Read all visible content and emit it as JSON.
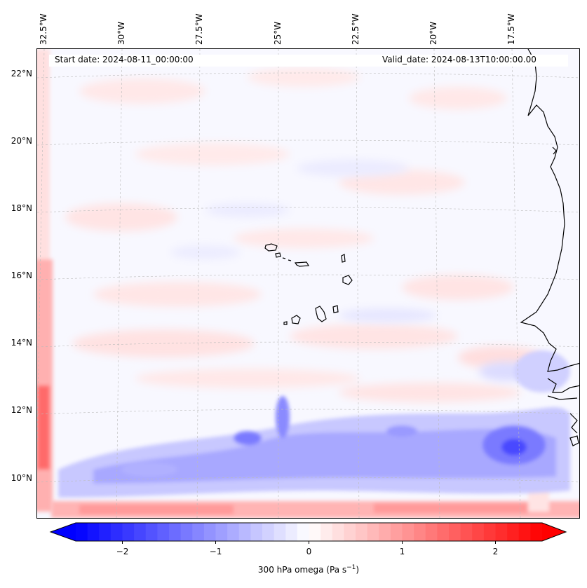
{
  "map": {
    "start_date": "Start date: 2024-08-11_00:00:00",
    "valid_date": "Valid_date: 2024-08-13T10:00:00.00",
    "lon_labels": [
      "32.5°W",
      "30°W",
      "27.5°W",
      "25°W",
      "22.5°W",
      "20°W",
      "17.5°W"
    ],
    "lat_labels": [
      "22°N",
      "20°N",
      "18°N",
      "16°N",
      "14°N",
      "12°N",
      "10°N"
    ],
    "field": "300 hPa omega",
    "lon_range": [
      -33.0,
      -15.5
    ],
    "lat_range": [
      8.9,
      22.8
    ],
    "gridlines": true,
    "colormap": "bwr",
    "colors": {
      "negative": "#0000ff",
      "zero": "#ffffff",
      "positive": "#ff0000",
      "coastline": "#000000"
    }
  },
  "colorbar": {
    "ticks": [
      "−2",
      "−1",
      "0",
      "1",
      "2"
    ],
    "tick_values": [
      -2,
      -1,
      0,
      1,
      2
    ],
    "range": [
      -2.5,
      2.5
    ],
    "extend": "both",
    "label_prefix": "300 hPa omega (Pa s",
    "label_exp": "−1",
    "label_suffix": ")"
  }
}
